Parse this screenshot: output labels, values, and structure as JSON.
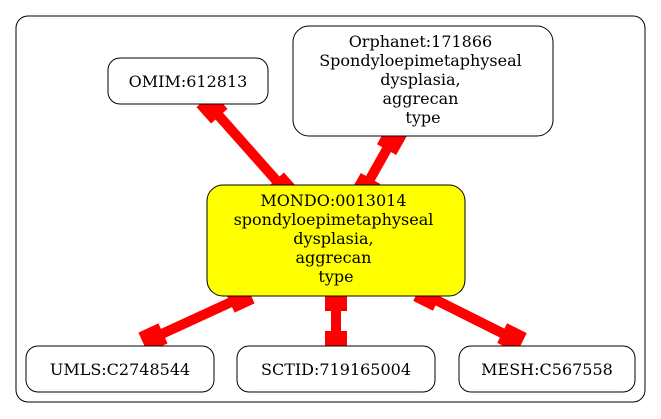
{
  "graph": {
    "center": {
      "lines": [
        "MONDO:0013014",
        "spondyloepimetaphyseal",
        "dysplasia,",
        "aggrecan",
        "type"
      ],
      "fill": "#ffff00"
    },
    "nodes": {
      "omim": {
        "lines": [
          "OMIM:612813"
        ]
      },
      "orphanet": {
        "lines": [
          "Orphanet:171866",
          "Spondyloepimetaphyseal",
          "dysplasia,",
          "aggrecan",
          "type"
        ]
      },
      "umls": {
        "lines": [
          "UMLS:C2748544"
        ]
      },
      "sctid": {
        "lines": [
          "SCTID:719165004"
        ]
      },
      "mesh": {
        "lines": [
          "MESH:C567558"
        ]
      }
    },
    "edge_color": "#ff0000"
  }
}
